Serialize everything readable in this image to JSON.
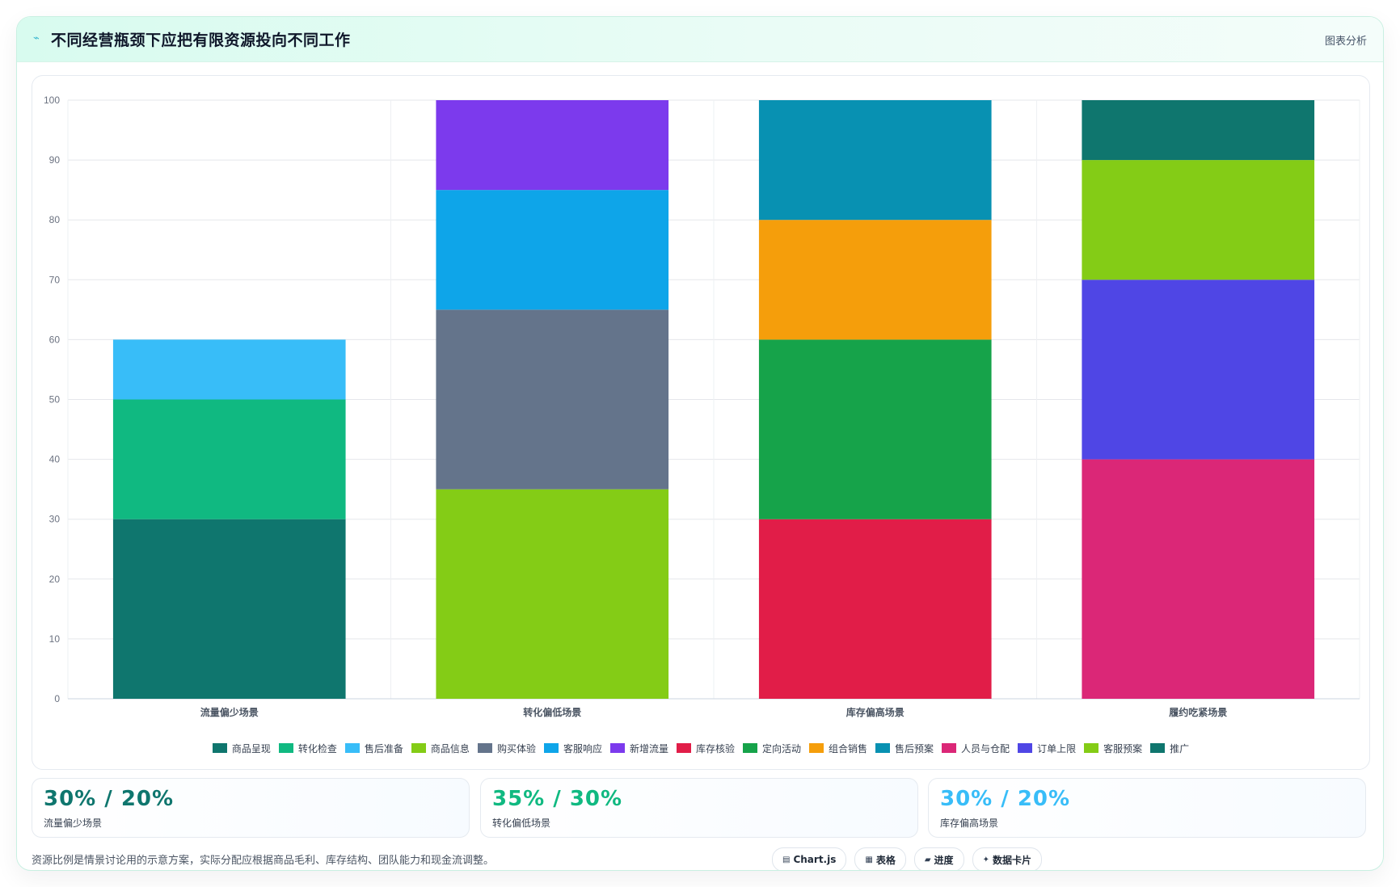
{
  "header": {
    "title": "不同经营瓶颈下应把有限资源投向不同工作",
    "title_icon": "sparkle-icon",
    "tag": "图表分析"
  },
  "chart_data": {
    "type": "bar",
    "stacked": true,
    "categories": [
      "流量偏少场景",
      "转化偏低场景",
      "库存偏高场景",
      "履约吃紧场景"
    ],
    "ylim": [
      0,
      100
    ],
    "yticks": [
      0,
      10,
      20,
      30,
      40,
      50,
      60,
      70,
      80,
      90,
      100
    ],
    "grid": true,
    "legend_position": "bottom",
    "series": [
      {
        "name": "商品呈现",
        "color": "#0f766e",
        "values": [
          30,
          0,
          0,
          0
        ]
      },
      {
        "name": "转化检查",
        "color": "#10b981",
        "values": [
          20,
          0,
          0,
          0
        ]
      },
      {
        "name": "售后准备",
        "color": "#38bdf8",
        "values": [
          10,
          0,
          0,
          0
        ]
      },
      {
        "name": "商品信息",
        "color": "#84cc16",
        "values": [
          0,
          35,
          0,
          0
        ]
      },
      {
        "name": "购买体验",
        "color": "#64748b",
        "values": [
          0,
          30,
          0,
          0
        ]
      },
      {
        "name": "客服响应",
        "color": "#0ea5e9",
        "values": [
          0,
          20,
          0,
          0
        ]
      },
      {
        "name": "新增流量",
        "color": "#7c3aed",
        "values": [
          0,
          15,
          0,
          0
        ]
      },
      {
        "name": "库存核验",
        "color": "#e11d48",
        "values": [
          0,
          0,
          30,
          0
        ]
      },
      {
        "name": "定向活动",
        "color": "#16a34a",
        "values": [
          0,
          0,
          30,
          0
        ]
      },
      {
        "name": "组合销售",
        "color": "#f59e0b",
        "values": [
          0,
          0,
          20,
          0
        ]
      },
      {
        "name": "售后预案",
        "color": "#0891b2",
        "values": [
          0,
          0,
          20,
          0
        ]
      },
      {
        "name": "人员与仓配",
        "color": "#db2777",
        "values": [
          0,
          0,
          0,
          40
        ]
      },
      {
        "name": "订单上限",
        "color": "#4f46e5",
        "values": [
          0,
          0,
          0,
          30
        ]
      },
      {
        "name": "客服预案",
        "color": "#84cc16",
        "values": [
          0,
          0,
          0,
          20
        ]
      },
      {
        "name": "推广",
        "color": "#0f766e",
        "values": [
          0,
          0,
          0,
          10
        ]
      }
    ]
  },
  "stats": [
    {
      "value": "30% / 20%",
      "label": "流量偏少场景",
      "color": "#0f766e"
    },
    {
      "value": "35% / 30%",
      "label": "转化偏低场景",
      "color": "#10b981"
    },
    {
      "value": "30% / 20%",
      "label": "库存偏高场景",
      "color": "#38bdf8"
    }
  ],
  "footnote": "资源比例是情景讨论用的示意方案，实际分配应根据商品毛利、库存结构、团队能力和现金流调整。",
  "tags": [
    {
      "icon": "chart-icon",
      "label": "Chart.js"
    },
    {
      "icon": "table-icon",
      "label": "表格"
    },
    {
      "icon": "progress-icon",
      "label": "进度"
    },
    {
      "icon": "card-icon",
      "label": "数据卡片"
    }
  ]
}
